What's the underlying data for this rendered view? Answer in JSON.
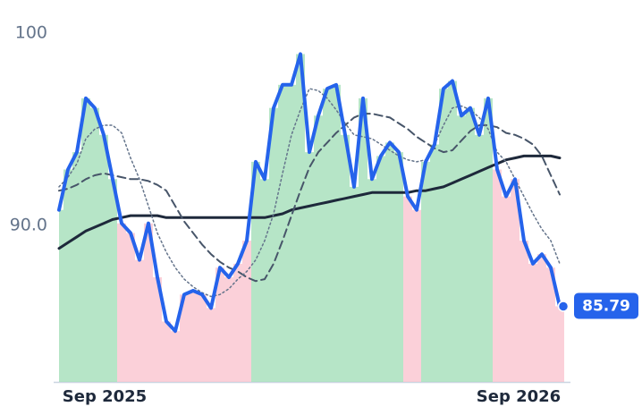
{
  "chart_data": {
    "type": "line",
    "x": [
      0,
      1,
      2,
      3,
      4,
      5,
      6,
      7,
      8,
      9,
      10,
      11,
      12,
      13,
      14,
      15,
      16,
      17,
      18,
      19,
      20,
      21,
      22,
      23,
      24,
      25,
      26,
      27,
      28,
      29,
      30,
      31,
      32,
      33,
      34,
      35,
      36,
      37,
      38,
      39,
      40,
      41,
      42,
      43,
      44,
      45,
      46,
      47,
      48,
      49,
      50,
      51,
      52,
      53,
      54,
      55,
      56
    ],
    "xlim": [
      0,
      57
    ],
    "xticks": [
      {
        "value": 5.1,
        "label": "Sep 2025"
      },
      {
        "value": 51.4,
        "label": "Sep 2026"
      }
    ],
    "ylim": [
      81.86,
      100.5
    ],
    "yticks": [
      {
        "value": 90,
        "label": "90.0"
      },
      100
    ],
    "grid": false,
    "fill_up_color": "#86d3a2",
    "fill_down_color": "#f9b1c0",
    "series": [
      {
        "color": "#2563eb",
        "width": 4,
        "style": "solid",
        "values": [
          90.8,
          92.9,
          93.8,
          96.6,
          96.1,
          94.7,
          92.4,
          90.1,
          89.6,
          88.2,
          90.1,
          87.3,
          85.0,
          84.5,
          86.4,
          86.6,
          86.4,
          85.7,
          87.8,
          87.3,
          88.0,
          89.2,
          93.3,
          92.4,
          96.1,
          97.3,
          97.3,
          98.9,
          93.8,
          95.7,
          97.1,
          97.3,
          94.7,
          92.0,
          96.6,
          92.4,
          93.6,
          94.3,
          93.8,
          91.5,
          90.8,
          93.3,
          94.2,
          97.1,
          97.5,
          95.7,
          96.1,
          94.7,
          96.6,
          92.9,
          91.5,
          92.4,
          89.2,
          88.0,
          88.5,
          87.8,
          85.79
        ]
      },
      {
        "color": "#1e293b",
        "width": 3,
        "style": "solid",
        "values": [
          88.8,
          89.1,
          89.4,
          89.7,
          89.9,
          90.1,
          90.3,
          90.4,
          90.5,
          90.5,
          90.5,
          90.5,
          90.4,
          90.4,
          90.4,
          90.4,
          90.4,
          90.4,
          90.4,
          90.4,
          90.4,
          90.4,
          90.4,
          90.4,
          90.5,
          90.6,
          90.8,
          90.9,
          91.0,
          91.1,
          91.2,
          91.3,
          91.4,
          91.5,
          91.6,
          91.7,
          91.7,
          91.7,
          91.7,
          91.7,
          91.8,
          91.8,
          91.9,
          92.0,
          92.2,
          92.4,
          92.6,
          92.8,
          93.0,
          93.2,
          93.4,
          93.5,
          93.6,
          93.6,
          93.6,
          93.6,
          93.5
        ]
      },
      {
        "color": "#475569",
        "width": 2,
        "style": "dashed",
        "values": [
          91.8,
          91.9,
          92.1,
          92.4,
          92.6,
          92.7,
          92.6,
          92.5,
          92.4,
          92.4,
          92.3,
          92.1,
          91.8,
          91.0,
          90.2,
          89.6,
          89.0,
          88.5,
          88.1,
          87.8,
          87.6,
          87.3,
          87.1,
          87.2,
          88.0,
          89.2,
          90.5,
          91.8,
          93.0,
          93.8,
          94.3,
          94.8,
          95.2,
          95.6,
          95.8,
          95.8,
          95.7,
          95.6,
          95.3,
          95.0,
          94.6,
          94.3,
          94.0,
          93.8,
          93.9,
          94.4,
          94.9,
          95.2,
          95.2,
          95.1,
          94.8,
          94.7,
          94.5,
          94.2,
          93.6,
          92.6,
          91.6
        ]
      },
      {
        "color": "#64748b",
        "width": 1.5,
        "style": "dotted",
        "values": [
          92.0,
          92.5,
          93.2,
          94.5,
          95.0,
          95.2,
          95.2,
          94.8,
          93.5,
          92.4,
          91.0,
          89.6,
          88.6,
          87.8,
          87.2,
          86.8,
          86.5,
          86.3,
          86.4,
          86.7,
          87.2,
          87.6,
          88.2,
          89.2,
          90.6,
          92.7,
          94.7,
          96.0,
          97.1,
          97.0,
          96.6,
          96.0,
          95.3,
          94.7,
          94.6,
          94.5,
          94.2,
          93.9,
          93.6,
          93.4,
          93.3,
          93.4,
          94.2,
          95.2,
          96.1,
          96.2,
          96.0,
          95.6,
          95.0,
          93.8,
          93.3,
          92.4,
          91.5,
          90.6,
          89.8,
          89.2,
          88.0
        ]
      }
    ]
  }
}
